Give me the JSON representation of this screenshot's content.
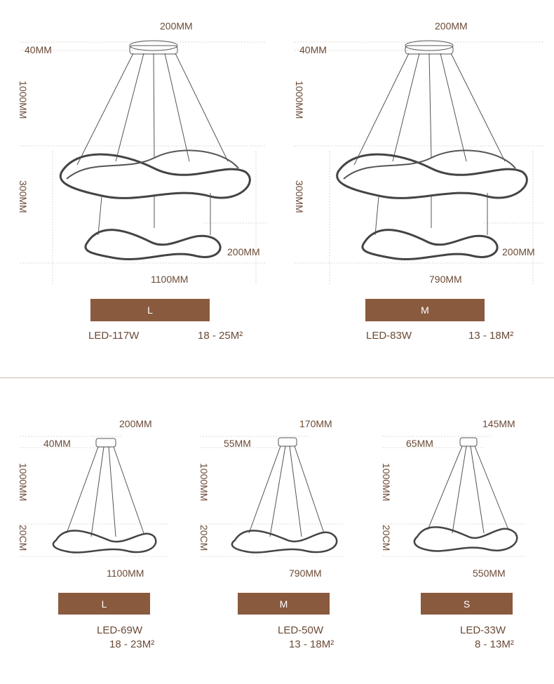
{
  "top_row": [
    {
      "id": "top-left",
      "dims": {
        "canopy_width": "200MM",
        "canopy_height": "40MM",
        "cable_length": "1000MM",
        "tier_gap": "300MM",
        "ring_height": "200MM",
        "diameter": "1100MM"
      },
      "size_label": "L",
      "power": "LED-117W",
      "area": "18 - 25M²"
    },
    {
      "id": "top-right",
      "dims": {
        "canopy_width": "200MM",
        "canopy_height": "40MM",
        "cable_length": "1000MM",
        "tier_gap": "300MM",
        "ring_height": "200MM",
        "diameter": "790MM"
      },
      "size_label": "M",
      "power": "LED-83W",
      "area": "13 - 18M²"
    }
  ],
  "bottom_row": [
    {
      "id": "bottom-1",
      "dims": {
        "canopy_width": "200MM",
        "canopy_height": "40MM",
        "cable_length": "1000MM",
        "ring_height": "20CM",
        "diameter": "1100MM"
      },
      "size_label": "L",
      "power": "LED-69W",
      "area": "18 - 23M²"
    },
    {
      "id": "bottom-2",
      "dims": {
        "canopy_width": "170MM",
        "canopy_height": "55MM",
        "cable_length": "1000MM",
        "ring_height": "20CM",
        "diameter": "790MM"
      },
      "size_label": "M",
      "power": "LED-50W",
      "area": "13 - 18M²"
    },
    {
      "id": "bottom-3",
      "dims": {
        "canopy_width": "145MM",
        "canopy_height": "65MM",
        "cable_length": "1000MM",
        "ring_height": "20CM",
        "diameter": "550MM"
      },
      "size_label": "S",
      "power": "LED-33W",
      "area": "8 - 13M²"
    }
  ],
  "colors": {
    "accent": "#8a5a3e",
    "text": "#6b4a36",
    "line": "#c9b8ab",
    "sketch": "#555555"
  }
}
